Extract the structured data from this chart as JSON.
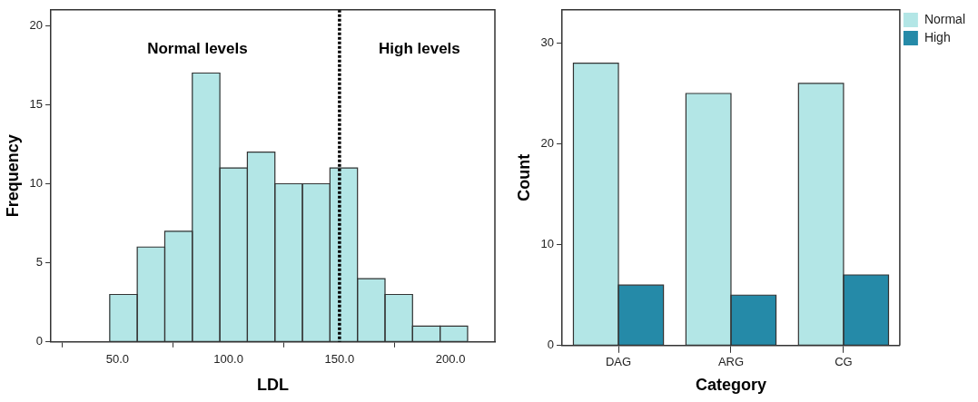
{
  "chart_data": [
    {
      "type": "histogram",
      "xlabel": "LDL",
      "ylabel": "Frequency",
      "bins": [
        46.5,
        58.9,
        71.3,
        83.7,
        96.1,
        108.5,
        120.9,
        133.3,
        145.7,
        158.1,
        170.5,
        182.9,
        195.3,
        207.7
      ],
      "values": [
        3,
        6,
        7,
        17,
        11,
        12,
        10,
        10,
        11,
        4,
        3,
        1,
        1
      ],
      "color": "#b3e6e6",
      "xlim": [
        20,
        220
      ],
      "xticks": [
        {
          "value": 50,
          "label": "50.0"
        },
        {
          "value": 100,
          "label": "100.0"
        },
        {
          "value": 150,
          "label": "150.0"
        },
        {
          "value": 200,
          "label": "200.0"
        }
      ],
      "ylim": [
        0,
        21
      ],
      "yticks": [
        0,
        5,
        10,
        15,
        20
      ],
      "ref_lines": [
        {
          "axis": "x",
          "value": 150,
          "color": "#000000",
          "line_style": "dotted"
        }
      ],
      "annotations": [
        "Normal levels",
        "High levels"
      ],
      "grid": false,
      "legend": false
    },
    {
      "type": "bar",
      "xlabel": "Category",
      "ylabel": "Count",
      "categories": [
        "DAG",
        "ARG",
        "CG"
      ],
      "series": [
        {
          "name": "Normal",
          "color": "#b3e6e6",
          "values": [
            28,
            25,
            26
          ]
        },
        {
          "name": "High",
          "color": "#258aa8",
          "values": [
            6,
            5,
            7
          ]
        }
      ],
      "ylim": [
        0,
        33.3
      ],
      "yticks": [
        0,
        10,
        20,
        30
      ],
      "grid": false,
      "legend": "right"
    }
  ]
}
